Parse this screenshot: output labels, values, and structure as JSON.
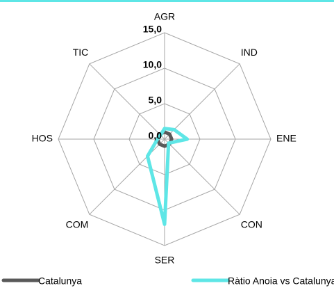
{
  "chart_data": {
    "type": "radar",
    "categories": [
      "AGR",
      "IND",
      "ENE",
      "CON",
      "SER",
      "COM",
      "HOS",
      "TIC"
    ],
    "series": [
      {
        "name": "Catalunya",
        "color": "#595959",
        "values": [
          1,
          1,
          1,
          1,
          1,
          1,
          1,
          1
        ]
      },
      {
        "name": "Ràtio Anoia vs Catalunya",
        "color": "#5ee6e6",
        "values": [
          1.5,
          1.9,
          3.2,
          0.8,
          12.0,
          3.4,
          1.0,
          0.8
        ]
      }
    ],
    "rlim": [
      0,
      15
    ],
    "rticks": [
      {
        "value": 0,
        "label": "0,0"
      },
      {
        "value": 5,
        "label": "5,0"
      },
      {
        "value": 10,
        "label": "10,0"
      },
      {
        "value": 15,
        "label": "15,0"
      }
    ],
    "grid": true
  }
}
